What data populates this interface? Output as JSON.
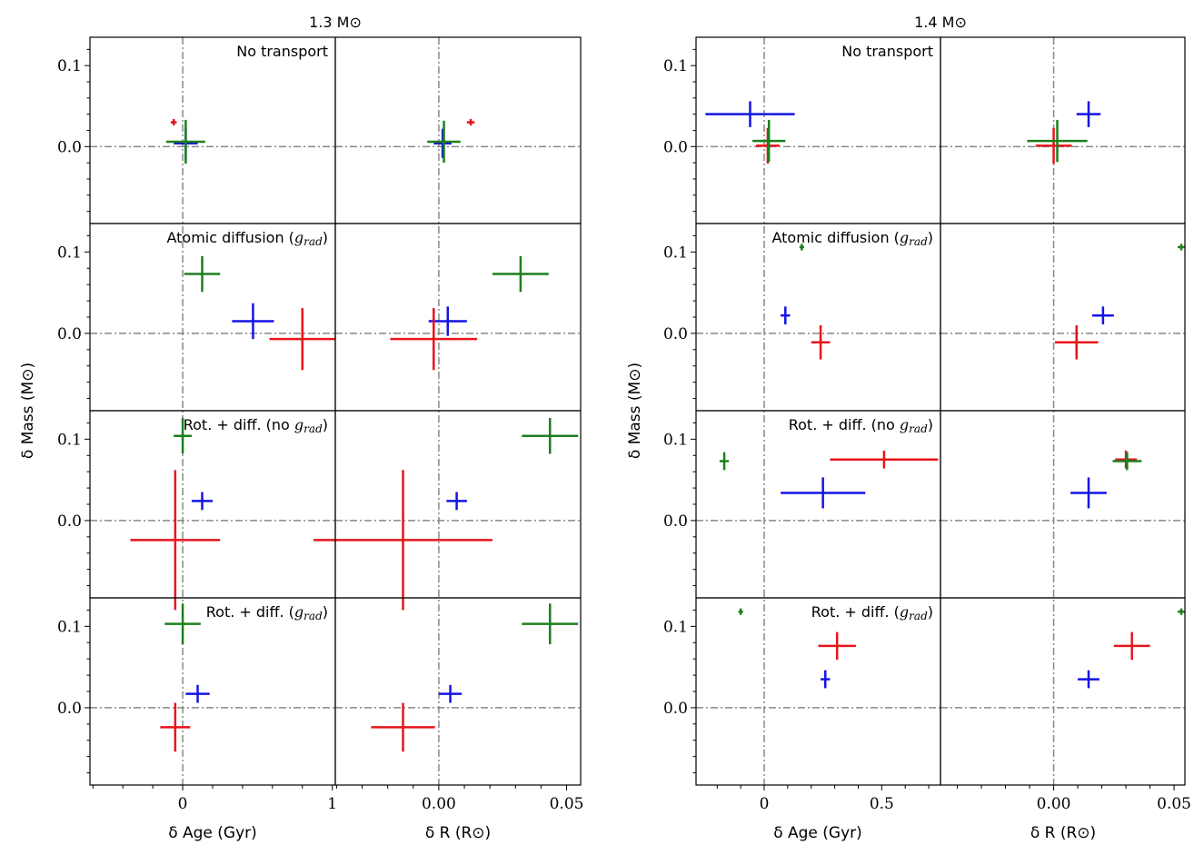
{
  "group_titles": [
    "1.3 M⊙",
    "1.4 M⊙"
  ],
  "axis_labels": {
    "y": "δ Mass (M⊙)",
    "x_age": "δ Age (Gyr)",
    "x_radius": "δ R (R⊙)"
  },
  "row_titles": [
    "No transport",
    "Atomic diffusion (grad)",
    "Rot. + diff. (no grad)",
    "Rot. + diff. (grad)"
  ],
  "y_ticks": [
    "0.1",
    "0.0"
  ],
  "x_ticks": {
    "age_1p3": [
      "0",
      "1"
    ],
    "r_1p3": [
      "0.00",
      "0.05"
    ],
    "age_1p4": [
      "0",
      "0.5"
    ],
    "r_1p4": [
      "0.00",
      "0.05"
    ]
  },
  "chart_data": {
    "type": "scatter",
    "grid": "dash-dot zero reference lines",
    "colors": {
      "red": "#e8141b",
      "blue": "#1414e6",
      "green": "#1c7f1c"
    },
    "panels": [
      {
        "mass": "1.3",
        "x": "age",
        "xlim": [
          -0.62,
          1.02
        ],
        "ylim": [
          -0.095,
          0.135
        ],
        "rows": [
          [
            {
              "c": "red",
              "x": -0.06,
              "y": 0.03,
              "xe": 0.02,
              "ye": 0.004
            },
            {
              "c": "blue",
              "x": 0.02,
              "y": 0.004,
              "xe": 0.08,
              "ye": 0.02
            },
            {
              "c": "green",
              "x": 0.02,
              "y": 0.006,
              "xe": 0.13,
              "ye": 0.027
            }
          ],
          [
            {
              "c": "green",
              "x": 0.13,
              "y": 0.073,
              "xe": 0.12,
              "ye": 0.022
            },
            {
              "c": "blue",
              "x": 0.47,
              "y": 0.015,
              "xe": 0.14,
              "ye": 0.022
            },
            {
              "c": "red",
              "x": 0.8,
              "y": -0.007,
              "xe": 0.22,
              "ye": 0.038
            }
          ],
          [
            {
              "c": "green",
              "x": 0.0,
              "y": 0.104,
              "xe": 0.06,
              "ye": 0.022
            },
            {
              "c": "blue",
              "x": 0.13,
              "y": 0.024,
              "xe": 0.07,
              "ye": 0.011
            },
            {
              "c": "red",
              "x": -0.05,
              "y": -0.024,
              "xe": 0.3,
              "ye": 0.086
            }
          ],
          [
            {
              "c": "green",
              "x": 0.0,
              "y": 0.103,
              "xe": 0.12,
              "ye": 0.025
            },
            {
              "c": "blue",
              "x": 0.1,
              "y": 0.017,
              "xe": 0.08,
              "ye": 0.011
            },
            {
              "c": "red",
              "x": -0.05,
              "y": -0.024,
              "xe": 0.1,
              "ye": 0.03
            }
          ]
        ]
      },
      {
        "mass": "1.3",
        "x": "r",
        "xlim": [
          -0.0405,
          0.0555
        ],
        "ylim": [
          -0.095,
          0.135
        ],
        "rows": [
          [
            {
              "c": "red",
              "x": 0.0125,
              "y": 0.03,
              "xe": 0.0015,
              "ye": 0.004
            },
            {
              "c": "blue",
              "x": 0.0015,
              "y": 0.004,
              "xe": 0.0035,
              "ye": 0.018
            },
            {
              "c": "green",
              "x": 0.002,
              "y": 0.006,
              "xe": 0.0065,
              "ye": 0.026
            }
          ],
          [
            {
              "c": "green",
              "x": 0.032,
              "y": 0.073,
              "xe": 0.011,
              "ye": 0.022
            },
            {
              "c": "blue",
              "x": 0.0035,
              "y": 0.015,
              "xe": 0.0075,
              "ye": 0.018
            },
            {
              "c": "red",
              "x": -0.002,
              "y": -0.007,
              "xe": 0.017,
              "ye": 0.038
            }
          ],
          [
            {
              "c": "green",
              "x": 0.0435,
              "y": 0.104,
              "xe": 0.011,
              "ye": 0.022
            },
            {
              "c": "blue",
              "x": 0.007,
              "y": 0.024,
              "xe": 0.004,
              "ye": 0.011
            },
            {
              "c": "red",
              "x": -0.014,
              "y": -0.024,
              "xe": 0.035,
              "ye": 0.086
            }
          ],
          [
            {
              "c": "green",
              "x": 0.0435,
              "y": 0.103,
              "xe": 0.011,
              "ye": 0.025
            },
            {
              "c": "blue",
              "x": 0.0045,
              "y": 0.017,
              "xe": 0.0045,
              "ye": 0.011
            },
            {
              "c": "red",
              "x": -0.014,
              "y": -0.024,
              "xe": 0.0125,
              "ye": 0.03
            }
          ]
        ]
      },
      {
        "mass": "1.4",
        "x": "age",
        "xlim": [
          -0.29,
          0.75
        ],
        "ylim": [
          -0.095,
          0.135
        ],
        "rows": [
          [
            {
              "c": "blue",
              "x": -0.06,
              "y": 0.04,
              "xe": 0.19,
              "ye": 0.016
            },
            {
              "c": "red",
              "x": 0.015,
              "y": 0.001,
              "xe": 0.05,
              "ye": 0.022
            },
            {
              "c": "green",
              "x": 0.02,
              "y": 0.007,
              "xe": 0.07,
              "ye": 0.026
            }
          ],
          [
            {
              "c": "green",
              "x": 0.16,
              "y": 0.106,
              "xe": 0.01,
              "ye": 0.004
            },
            {
              "c": "blue",
              "x": 0.09,
              "y": 0.022,
              "xe": 0.02,
              "ye": 0.011
            },
            {
              "c": "red",
              "x": 0.24,
              "y": -0.011,
              "xe": 0.04,
              "ye": 0.021
            }
          ],
          [
            {
              "c": "green",
              "x": -0.17,
              "y": 0.073,
              "xe": 0.02,
              "ye": 0.011
            },
            {
              "c": "blue",
              "x": 0.25,
              "y": 0.034,
              "xe": 0.18,
              "ye": 0.019
            },
            {
              "c": "red",
              "x": 0.51,
              "y": 0.075,
              "xe": 0.23,
              "ye": 0.011
            }
          ],
          [
            {
              "c": "green",
              "x": -0.1,
              "y": 0.118,
              "xe": 0.01,
              "ye": 0.004
            },
            {
              "c": "red",
              "x": 0.31,
              "y": 0.076,
              "xe": 0.08,
              "ye": 0.017
            },
            {
              "c": "blue",
              "x": 0.26,
              "y": 0.035,
              "xe": 0.02,
              "ye": 0.011
            }
          ]
        ]
      },
      {
        "mass": "1.4",
        "x": "r",
        "xlim": [
          -0.047,
          0.0545
        ],
        "ylim": [
          -0.095,
          0.135
        ],
        "rows": [
          [
            {
              "c": "blue",
              "x": 0.0145,
              "y": 0.04,
              "xe": 0.005,
              "ye": 0.016
            },
            {
              "c": "red",
              "x": 0.0,
              "y": 0.001,
              "xe": 0.0075,
              "ye": 0.022
            },
            {
              "c": "green",
              "x": 0.0015,
              "y": 0.007,
              "xe": 0.0125,
              "ye": 0.026
            }
          ],
          [
            {
              "c": "green",
              "x": 0.053,
              "y": 0.106,
              "xe": 0.0015,
              "ye": 0.004
            },
            {
              "c": "blue",
              "x": 0.0205,
              "y": 0.022,
              "xe": 0.0045,
              "ye": 0.011
            },
            {
              "c": "red",
              "x": 0.0095,
              "y": -0.011,
              "xe": 0.009,
              "ye": 0.021
            }
          ],
          [
            {
              "c": "blue",
              "x": 0.0145,
              "y": 0.034,
              "xe": 0.0075,
              "ye": 0.019
            },
            {
              "c": "red",
              "x": 0.03,
              "y": 0.075,
              "xe": 0.0045,
              "ye": 0.011
            },
            {
              "c": "green",
              "x": 0.0305,
              "y": 0.073,
              "xe": 0.006,
              "ye": 0.011
            }
          ],
          [
            {
              "c": "green",
              "x": 0.053,
              "y": 0.118,
              "xe": 0.0015,
              "ye": 0.004
            },
            {
              "c": "red",
              "x": 0.0325,
              "y": 0.076,
              "xe": 0.0075,
              "ye": 0.017
            },
            {
              "c": "blue",
              "x": 0.0145,
              "y": 0.035,
              "xe": 0.0045,
              "ye": 0.011
            }
          ]
        ]
      }
    ]
  }
}
